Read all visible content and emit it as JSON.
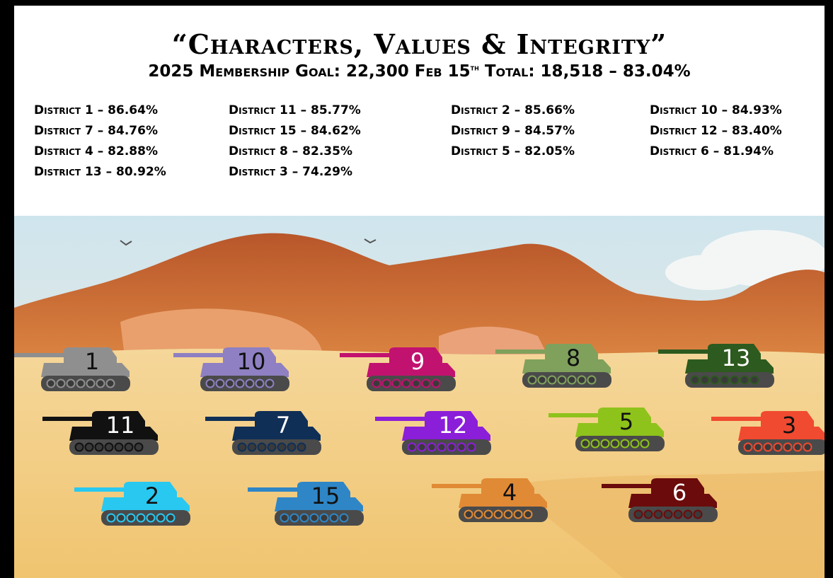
{
  "header": {
    "title": "“Characters, Values & Integrity”",
    "subtitle": {
      "goal": "2025 Membership Goal: 22,300",
      "date": "Feb 15",
      "date_suffix": "th",
      "total": "Total: 18,518 – 83.04%"
    }
  },
  "districts": [
    [
      "District 1 – 86.64%",
      "District 11 – 85.77%",
      "District 2 – 85.66%",
      "District 10 – 84.93%"
    ],
    [
      "District 7 – 84.76%",
      "District 15 – 84.62%",
      "District 9 – 84.57%",
      "District 12 – 83.40%"
    ],
    [
      "District 4 – 82.88%",
      "District 8 – 82.35%",
      "District 5 – 82.05%",
      "District 6 – 81.94%"
    ],
    [
      "District 13 – 80.92%",
      "District 3 – 74.29%"
    ]
  ],
  "tanks": [
    {
      "number": "1",
      "color": "#8f8f8f"
    },
    {
      "number": "10",
      "color": "#8e80c2"
    },
    {
      "number": "9",
      "color": "#c2126f"
    },
    {
      "number": "8",
      "color": "#7fa15c"
    },
    {
      "number": "13",
      "color": "#2d5a1e"
    },
    {
      "number": "11",
      "color": "#111111"
    },
    {
      "number": "7",
      "color": "#0f2f57"
    },
    {
      "number": "12",
      "color": "#8b1ed9"
    },
    {
      "number": "5",
      "color": "#8ec31b"
    },
    {
      "number": "3",
      "color": "#f04a30"
    },
    {
      "number": "2",
      "color": "#29c8f0"
    },
    {
      "number": "15",
      "color": "#2f86c6"
    },
    {
      "number": "4",
      "color": "#e08a36"
    },
    {
      "number": "6",
      "color": "#6b0b0b"
    }
  ]
}
